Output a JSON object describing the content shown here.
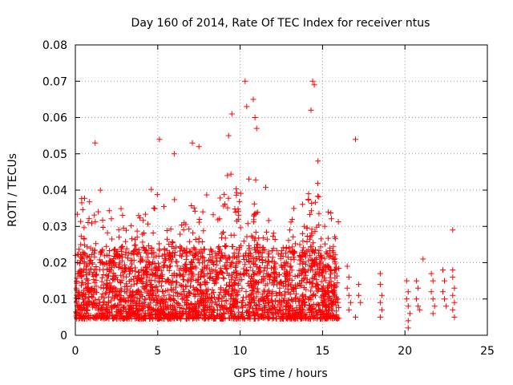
{
  "chart_data": {
    "type": "scatter",
    "title": "Day 160 of 2014, Rate Of TEC Index for receiver ntus",
    "xlabel": "GPS time / hours",
    "ylabel": "ROTI / TECUs",
    "xlim": [
      0,
      25
    ],
    "ylim": [
      0,
      0.08
    ],
    "grid": true,
    "marker": "+",
    "color": "#ff0000",
    "x_ticks": [
      "0",
      "5",
      "10",
      "15",
      "20",
      "25"
    ],
    "y_ticks": [
      "0",
      "0.01",
      "0.02",
      "0.03",
      "0.04",
      "0.05",
      "0.06",
      "0.07",
      "0.08"
    ],
    "series": [
      {
        "name": "ROTI",
        "dense_coverage": {
          "x_range": [
            0,
            16
          ],
          "y_typical": [
            0.004,
            0.03
          ]
        },
        "notable_points": [
          [
            1.2,
            0.053
          ],
          [
            5.1,
            0.054
          ],
          [
            6.0,
            0.05
          ],
          [
            7.1,
            0.053
          ],
          [
            7.5,
            0.052
          ],
          [
            9.3,
            0.055
          ],
          [
            9.5,
            0.061
          ],
          [
            10.3,
            0.07
          ],
          [
            10.4,
            0.063
          ],
          [
            10.8,
            0.065
          ],
          [
            10.9,
            0.06
          ],
          [
            11.0,
            0.057
          ],
          [
            14.3,
            0.062
          ],
          [
            14.4,
            0.07
          ],
          [
            14.5,
            0.069
          ],
          [
            17.0,
            0.054
          ],
          [
            22.9,
            0.029
          ],
          [
            21.1,
            0.021
          ],
          [
            20.2,
            0.002
          ]
        ],
        "sparse_points": [
          [
            16.5,
            0.019
          ],
          [
            16.6,
            0.016
          ],
          [
            16.5,
            0.013
          ],
          [
            16.6,
            0.011
          ],
          [
            16.7,
            0.009
          ],
          [
            16.6,
            0.007
          ],
          [
            17.2,
            0.014
          ],
          [
            17.2,
            0.011
          ],
          [
            17.3,
            0.009
          ],
          [
            17.0,
            0.005
          ],
          [
            18.5,
            0.017
          ],
          [
            18.5,
            0.014
          ],
          [
            18.6,
            0.011
          ],
          [
            18.5,
            0.009
          ],
          [
            18.6,
            0.007
          ],
          [
            18.5,
            0.005
          ],
          [
            20.1,
            0.015
          ],
          [
            20.2,
            0.012
          ],
          [
            20.1,
            0.01
          ],
          [
            20.2,
            0.008
          ],
          [
            20.3,
            0.006
          ],
          [
            20.2,
            0.004
          ],
          [
            20.7,
            0.015
          ],
          [
            20.8,
            0.013
          ],
          [
            20.7,
            0.01
          ],
          [
            20.8,
            0.008
          ],
          [
            20.9,
            0.007
          ],
          [
            21.6,
            0.017
          ],
          [
            21.7,
            0.015
          ],
          [
            21.6,
            0.012
          ],
          [
            21.7,
            0.01
          ],
          [
            21.8,
            0.008
          ],
          [
            21.7,
            0.006
          ],
          [
            22.3,
            0.018
          ],
          [
            22.4,
            0.015
          ],
          [
            22.3,
            0.012
          ],
          [
            22.4,
            0.01
          ],
          [
            22.5,
            0.008
          ],
          [
            22.9,
            0.018
          ],
          [
            22.9,
            0.016
          ],
          [
            23.0,
            0.013
          ],
          [
            22.9,
            0.011
          ],
          [
            23.0,
            0.009
          ],
          [
            22.9,
            0.007
          ],
          [
            23.0,
            0.005
          ]
        ]
      }
    ]
  }
}
